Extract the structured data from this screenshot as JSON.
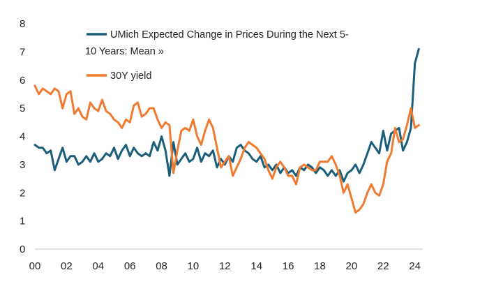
{
  "chart_data": {
    "type": "line",
    "title": "",
    "xlabel": "",
    "ylabel": "",
    "xlim": [
      2000,
      2024.5
    ],
    "ylim": [
      0,
      8
    ],
    "x_tick_values": [
      2000,
      2002,
      2004,
      2006,
      2008,
      2010,
      2012,
      2014,
      2016,
      2018,
      2020,
      2022,
      2024
    ],
    "x_tick_labels": [
      "00",
      "02",
      "04",
      "06",
      "08",
      "10",
      "12",
      "14",
      "16",
      "18",
      "20",
      "22",
      "24"
    ],
    "y_ticks": [
      0,
      1,
      2,
      3,
      4,
      5,
      6,
      7,
      8
    ],
    "grid": false,
    "legend_position": "top-center",
    "series": [
      {
        "name": "UMich Expected Change in Prices During the Next 5-10 Years: Mean »",
        "legend_lines": [
          "UMich Expected Change in Prices During the Next 5-",
          "10 Years: Mean »"
        ],
        "color": "#1b5e7a",
        "x": [
          2000.0,
          2000.25,
          2000.5,
          2000.75,
          2001.0,
          2001.25,
          2001.5,
          2001.75,
          2002.0,
          2002.25,
          2002.5,
          2002.75,
          2003.0,
          2003.25,
          2003.5,
          2003.75,
          2004.0,
          2004.25,
          2004.5,
          2004.75,
          2005.0,
          2005.25,
          2005.5,
          2005.75,
          2006.0,
          2006.25,
          2006.5,
          2006.75,
          2007.0,
          2007.25,
          2007.5,
          2007.75,
          2008.0,
          2008.25,
          2008.5,
          2008.75,
          2009.0,
          2009.25,
          2009.5,
          2009.75,
          2010.0,
          2010.25,
          2010.5,
          2010.75,
          2011.0,
          2011.25,
          2011.5,
          2011.75,
          2012.0,
          2012.25,
          2012.5,
          2012.75,
          2013.0,
          2013.25,
          2013.5,
          2013.75,
          2014.0,
          2014.25,
          2014.5,
          2014.75,
          2015.0,
          2015.25,
          2015.5,
          2015.75,
          2016.0,
          2016.25,
          2016.5,
          2016.75,
          2017.0,
          2017.25,
          2017.5,
          2017.75,
          2018.0,
          2018.25,
          2018.5,
          2018.75,
          2019.0,
          2019.25,
          2019.5,
          2019.75,
          2020.0,
          2020.25,
          2020.5,
          2020.75,
          2021.0,
          2021.25,
          2021.5,
          2021.75,
          2022.0,
          2022.25,
          2022.5,
          2022.75,
          2023.0,
          2023.25,
          2023.5,
          2023.75,
          2024.0,
          2024.25
        ],
        "values": [
          3.7,
          3.6,
          3.6,
          3.4,
          3.5,
          2.8,
          3.2,
          3.6,
          3.1,
          3.3,
          3.3,
          3.0,
          3.1,
          3.3,
          3.1,
          3.4,
          3.1,
          3.2,
          3.4,
          3.3,
          3.6,
          3.2,
          3.5,
          3.7,
          3.3,
          3.6,
          3.4,
          3.3,
          3.4,
          3.3,
          3.8,
          3.5,
          4.0,
          3.5,
          2.6,
          3.8,
          3.0,
          3.2,
          3.4,
          3.1,
          3.2,
          3.6,
          3.1,
          3.4,
          3.3,
          3.5,
          2.9,
          3.2,
          3.0,
          3.3,
          3.1,
          3.6,
          3.7,
          3.5,
          3.4,
          3.2,
          3.1,
          3.3,
          2.9,
          3.0,
          2.8,
          3.0,
          2.7,
          2.9,
          2.7,
          2.8,
          2.6,
          2.9,
          2.8,
          3.0,
          2.9,
          2.7,
          2.9,
          2.8,
          2.6,
          2.8,
          2.6,
          2.8,
          2.4,
          2.7,
          2.8,
          3.0,
          2.7,
          3.0,
          3.4,
          3.8,
          3.6,
          3.4,
          4.2,
          3.5,
          4.1,
          4.2,
          4.3,
          3.5,
          3.8,
          4.3,
          6.6,
          7.1
        ]
      },
      {
        "name": "30Y yield",
        "legend_lines": [
          "30Y yield"
        ],
        "color": "#f07b30",
        "x": [
          2000.0,
          2000.25,
          2000.5,
          2000.75,
          2001.0,
          2001.25,
          2001.5,
          2001.75,
          2002.0,
          2002.25,
          2002.5,
          2002.75,
          2003.0,
          2003.25,
          2003.5,
          2003.75,
          2004.0,
          2004.25,
          2004.5,
          2004.75,
          2005.0,
          2005.25,
          2005.5,
          2005.75,
          2006.0,
          2006.25,
          2006.5,
          2006.75,
          2007.0,
          2007.25,
          2007.5,
          2007.75,
          2008.0,
          2008.25,
          2008.5,
          2008.75,
          2009.0,
          2009.25,
          2009.5,
          2009.75,
          2010.0,
          2010.25,
          2010.5,
          2010.75,
          2011.0,
          2011.25,
          2011.5,
          2011.75,
          2012.0,
          2012.25,
          2012.5,
          2012.75,
          2013.0,
          2013.25,
          2013.5,
          2013.75,
          2014.0,
          2014.25,
          2014.5,
          2014.75,
          2015.0,
          2015.25,
          2015.5,
          2015.75,
          2016.0,
          2016.25,
          2016.5,
          2016.75,
          2017.0,
          2017.25,
          2017.5,
          2017.75,
          2018.0,
          2018.25,
          2018.5,
          2018.75,
          2019.0,
          2019.25,
          2019.5,
          2019.75,
          2020.0,
          2020.25,
          2020.5,
          2020.75,
          2021.0,
          2021.25,
          2021.5,
          2021.75,
          2022.0,
          2022.25,
          2022.5,
          2022.75,
          2023.0,
          2023.25,
          2023.5,
          2023.75,
          2024.0,
          2024.25
        ],
        "values": [
          5.8,
          5.5,
          5.7,
          5.6,
          5.5,
          5.7,
          5.6,
          5.0,
          5.5,
          5.6,
          4.8,
          5.0,
          4.7,
          4.6,
          5.2,
          5.0,
          4.9,
          5.3,
          4.9,
          4.8,
          4.6,
          4.5,
          4.3,
          4.6,
          4.5,
          5.1,
          5.2,
          4.7,
          4.8,
          5.0,
          5.0,
          4.6,
          4.3,
          4.5,
          4.4,
          2.7,
          3.5,
          4.2,
          4.3,
          4.2,
          4.6,
          4.0,
          3.7,
          4.2,
          4.6,
          4.3,
          3.6,
          2.9,
          3.1,
          3.3,
          2.6,
          2.9,
          3.2,
          3.6,
          3.8,
          3.7,
          3.6,
          3.4,
          3.2,
          2.8,
          2.5,
          2.9,
          3.1,
          2.9,
          2.6,
          2.6,
          2.3,
          2.9,
          3.0,
          2.9,
          2.8,
          2.8,
          3.1,
          3.1,
          3.1,
          3.3,
          3.0,
          2.6,
          2.0,
          2.3,
          1.8,
          1.3,
          1.4,
          1.6,
          2.0,
          2.3,
          2.0,
          1.9,
          2.3,
          3.1,
          3.4,
          4.3,
          3.8,
          3.9,
          4.4,
          5.0,
          4.3,
          4.4
        ]
      }
    ]
  }
}
